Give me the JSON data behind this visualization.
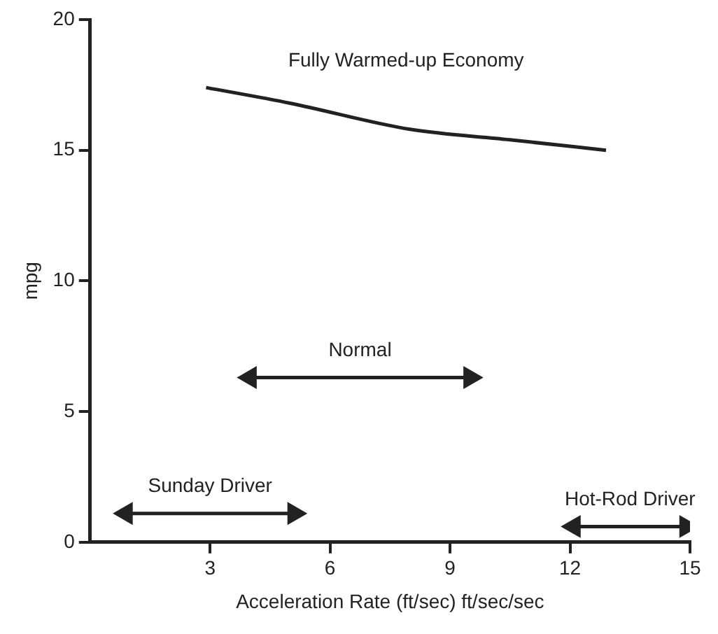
{
  "chart_data": {
    "type": "line",
    "xlabel": "Acceleration Rate (ft/sec) ft/sec/sec",
    "ylabel": "mpg",
    "xlim": [
      0,
      15
    ],
    "xticks": [
      3,
      6,
      9,
      12,
      15
    ],
    "ylim": [
      0,
      20
    ],
    "yticks": [
      0,
      5,
      10,
      15,
      20
    ],
    "grid": false,
    "legend": false,
    "marker": "none",
    "line_style": "solid",
    "series": [
      {
        "name": "Fully Warmed-up Economy",
        "color": "#222222",
        "x": [
          2.9,
          5,
          8,
          10.5,
          12.9
        ],
        "values": [
          17.4,
          16.8,
          15.8,
          15.4,
          15
        ]
      },
      {
        "name": "Normal",
        "color": "#222222",
        "marker": "triangle",
        "x": [
          4,
          9.5
        ],
        "values": [
          6.3,
          6.3
        ]
      },
      {
        "name": "Sunday Driver",
        "color": "#222222",
        "marker": "triangle",
        "x": [
          0.9,
          5.1
        ],
        "values": [
          1.1,
          1.1
        ]
      },
      {
        "name": "Hot-Rod Driver",
        "color": "#222222",
        "marker": "triangle",
        "x": [
          12.1,
          14.9
        ],
        "values": [
          0.6,
          0.6
        ]
      }
    ]
  }
}
